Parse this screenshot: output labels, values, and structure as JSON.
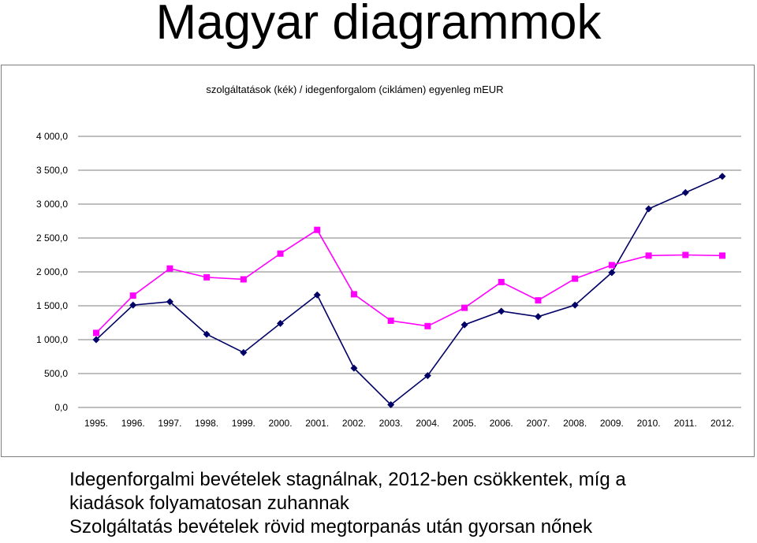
{
  "page": {
    "title": "Magyar diagrammok",
    "caption_lines": [
      "Idegenforgalmi bevételek stagnálnak, 2012-ben csökkentek, míg a",
      "kiadások folyamatosan zuhannak",
      "Szolgáltatás bevételek rövid megtorpanás után gyorsan nőnek"
    ]
  },
  "chart_data": {
    "type": "line",
    "title": "szolgáltatások (kék) / idegenforgalom (ciklámen) egyenleg mEUR",
    "xlabel": "",
    "ylabel": "",
    "ylim": [
      0,
      4000
    ],
    "yticks": [
      "0,0",
      "500,0",
      "1 000,0",
      "1 500,0",
      "2 000,0",
      "2 500,0",
      "3 000,0",
      "3 500,0",
      "4 000,0"
    ],
    "ytick_values": [
      0,
      500,
      1000,
      1500,
      2000,
      2500,
      3000,
      3500,
      4000
    ],
    "categories": [
      "1995.",
      "1996.",
      "1997.",
      "1998.",
      "1999.",
      "2000.",
      "2001.",
      "2002.",
      "2003.",
      "2004.",
      "2005.",
      "2006.",
      "2007.",
      "2008.",
      "2009.",
      "2010.",
      "2011.",
      "2012."
    ],
    "grid": "horizontal",
    "legend": "none",
    "series": [
      {
        "color": "#000066",
        "marker": "diamond",
        "values": [
          1000,
          1510,
          1560,
          1080,
          810,
          1240,
          1660,
          580,
          40,
          470,
          1220,
          1420,
          1340,
          1510,
          1990,
          2930,
          3170,
          3410
        ]
      },
      {
        "color": "#ff00ff",
        "marker": "square",
        "values": [
          1100,
          1650,
          2050,
          1920,
          1890,
          2270,
          2620,
          1670,
          1280,
          1200,
          1470,
          1850,
          1580,
          1900,
          2100,
          2240,
          2250,
          2240
        ]
      }
    ]
  }
}
